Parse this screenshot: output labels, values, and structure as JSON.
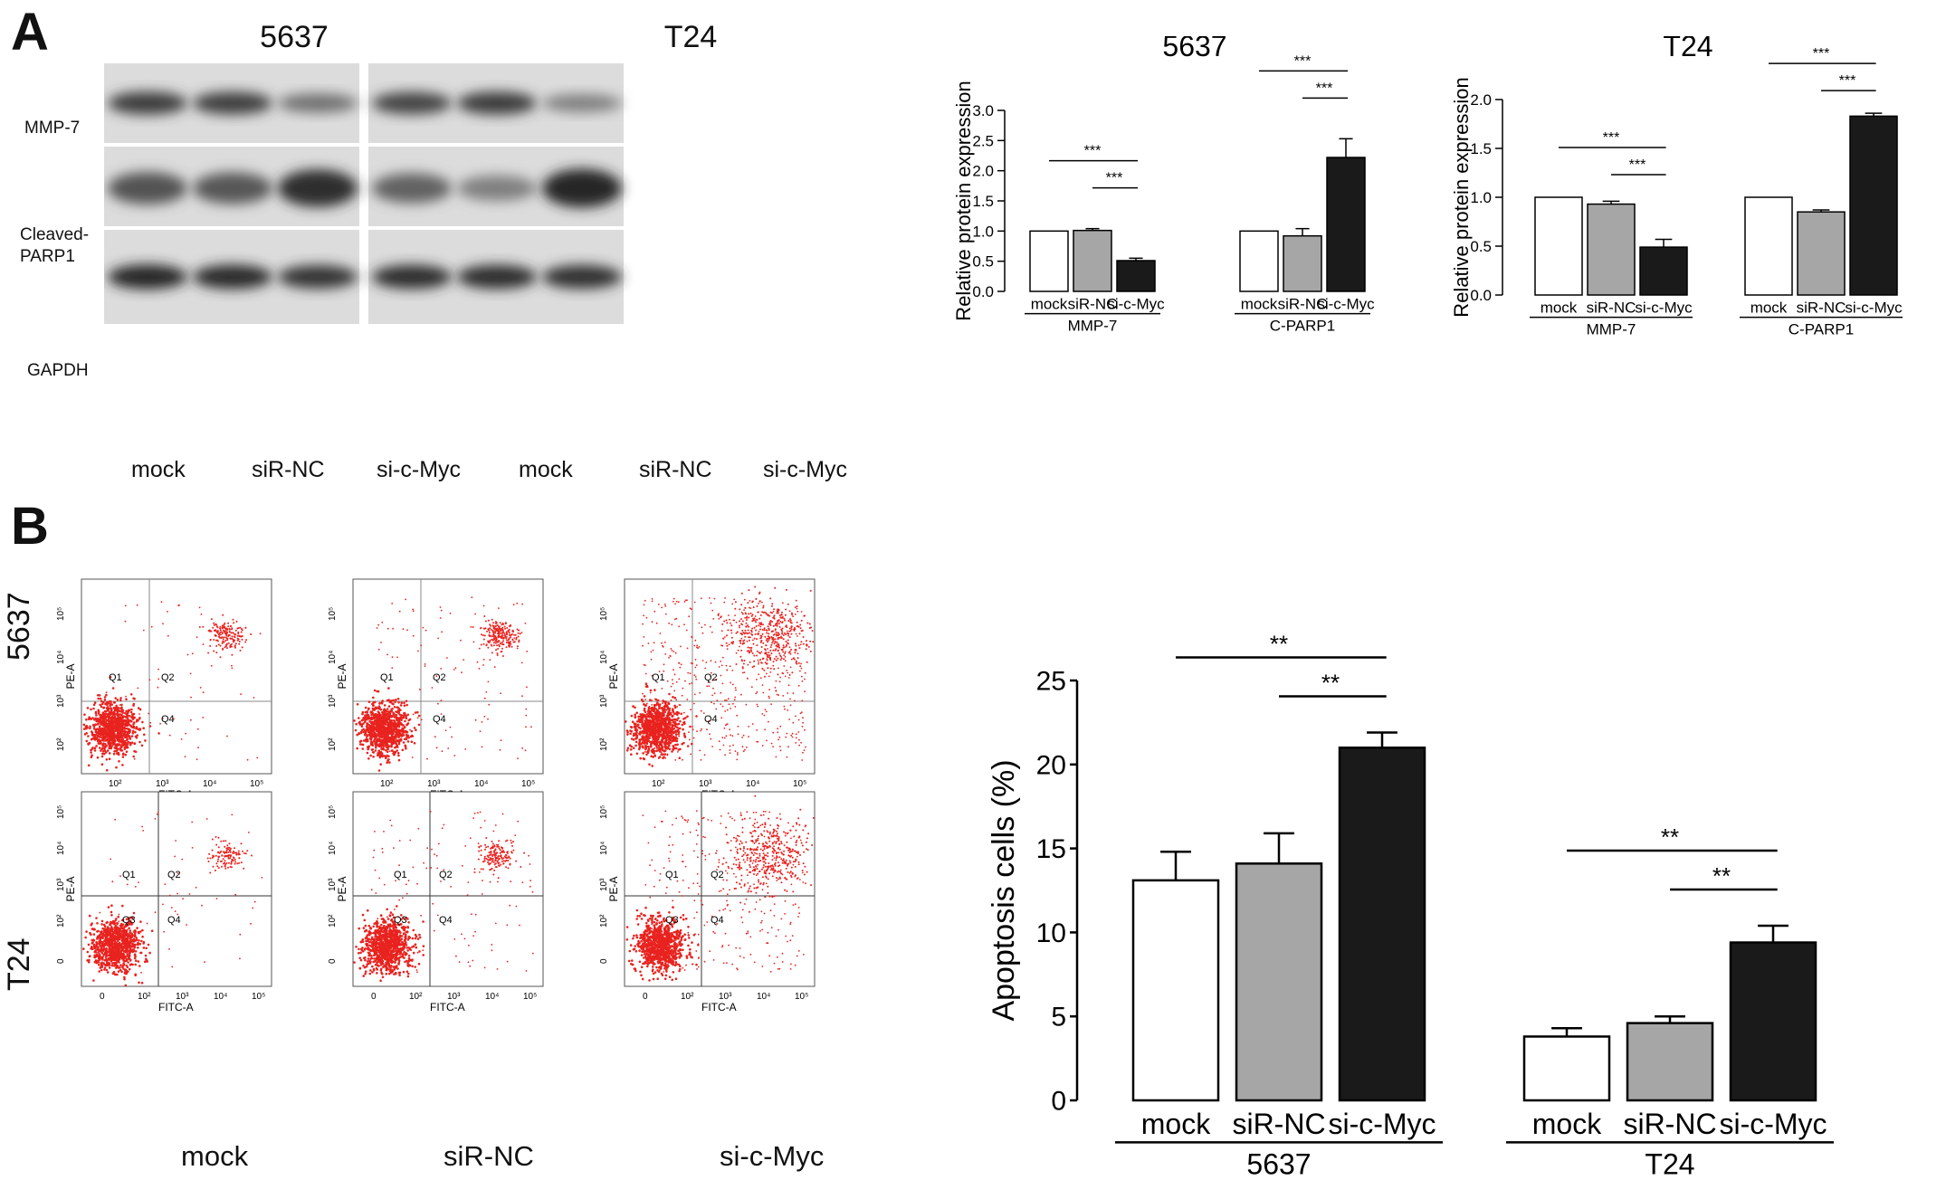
{
  "panels": {
    "a_label": "A",
    "b_label": "B"
  },
  "western": {
    "cell_titles": [
      "5637",
      "T24"
    ],
    "row_labels": [
      "MMP-7",
      "Cleaved-\nPARP1",
      "GAPDH"
    ],
    "lane_labels": [
      "mock",
      "siR-NC",
      "si-c-Myc",
      "mock",
      "siR-NC",
      "si-c-Myc"
    ],
    "band_intensity": {
      "5637": [
        [
          0.8,
          0.78,
          0.45
        ],
        [
          0.65,
          0.62,
          0.9
        ],
        [
          0.95,
          0.92,
          0.85
        ]
      ],
      "T24": [
        [
          0.75,
          0.8,
          0.35
        ],
        [
          0.55,
          0.35,
          0.95
        ],
        [
          0.9,
          0.9,
          0.88
        ]
      ]
    }
  },
  "flow": {
    "row_labels": [
      "5637",
      "T24"
    ],
    "col_labels": [
      "mock",
      "siR-NC",
      "si-c-Myc"
    ],
    "x_axis": "FITC-A",
    "y_axis": "PE-A",
    "quadrants_top": [
      "Q1",
      "Q2",
      "Q4"
    ],
    "quadrants_bottom": [
      "Q1",
      "Q2",
      "Q3",
      "Q4"
    ],
    "x_ticks_top": [
      "10²",
      "10³",
      "10⁴",
      "10⁵"
    ],
    "x_ticks_bottom": [
      "0",
      "10²",
      "10³",
      "10⁴",
      "10⁵"
    ],
    "y_ticks_top": [
      "10²",
      "10³",
      "10⁴",
      "10⁵"
    ],
    "y_ticks_bottom": [
      "0",
      "10²",
      "10³",
      "10⁴",
      "10⁵"
    ]
  },
  "colors": {
    "mock": "#ffffff",
    "siR-NC": "#a6a6a6",
    "si-c-Myc": "#1a1a1a",
    "dots": "#e8231f"
  },
  "chart_data": [
    {
      "type": "bar",
      "title": "5637",
      "ylabel": "Relative protein expression",
      "ylim": [
        0,
        3.0
      ],
      "yticks": [
        "0.0",
        "0.5",
        "1.0",
        "1.5",
        "2.0",
        "2.5",
        "3.0"
      ],
      "groups": [
        "MMP-7",
        "C-PARP1"
      ],
      "categories": [
        "mock",
        "siR-NC",
        "si-c-Myc"
      ],
      "series": [
        {
          "values": [
            1.0,
            1.01,
            0.51
          ],
          "errors": [
            0,
            0.03,
            0.04
          ]
        },
        {
          "values": [
            1.0,
            0.92,
            2.22
          ],
          "errors": [
            0,
            0.12,
            0.31
          ]
        }
      ],
      "significance": [
        "***",
        "***",
        "***",
        "***"
      ]
    },
    {
      "type": "bar",
      "title": "T24",
      "ylabel": "Relative protein expression",
      "ylim": [
        0,
        2.0
      ],
      "yticks": [
        "0.0",
        "0.5",
        "1.0",
        "1.5",
        "2.0"
      ],
      "groups": [
        "MMP-7",
        "C-PARP1"
      ],
      "categories": [
        "mock",
        "siR-NC",
        "si-c-Myc"
      ],
      "series": [
        {
          "values": [
            1.0,
            0.93,
            0.49
          ],
          "errors": [
            0,
            0.03,
            0.08
          ]
        },
        {
          "values": [
            1.0,
            0.85,
            1.83
          ],
          "errors": [
            0,
            0.02,
            0.03
          ]
        }
      ],
      "significance": [
        "***",
        "***",
        "***",
        "***"
      ]
    },
    {
      "type": "bar",
      "title": "",
      "ylabel": "Apoptosis cells (%)",
      "ylim": [
        0,
        25
      ],
      "yticks": [
        "0",
        "5",
        "10",
        "15",
        "20",
        "25"
      ],
      "groups": [
        "5637",
        "T24"
      ],
      "categories": [
        "mock",
        "siR-NC",
        "si-c-Myc"
      ],
      "series": [
        {
          "values": [
            13.1,
            14.1,
            21.0
          ],
          "errors": [
            1.7,
            1.8,
            0.9
          ]
        },
        {
          "values": [
            3.8,
            4.6,
            9.4
          ],
          "errors": [
            0.5,
            0.4,
            1.0
          ]
        }
      ],
      "significance": [
        "**",
        "**",
        "**",
        "**"
      ]
    }
  ]
}
